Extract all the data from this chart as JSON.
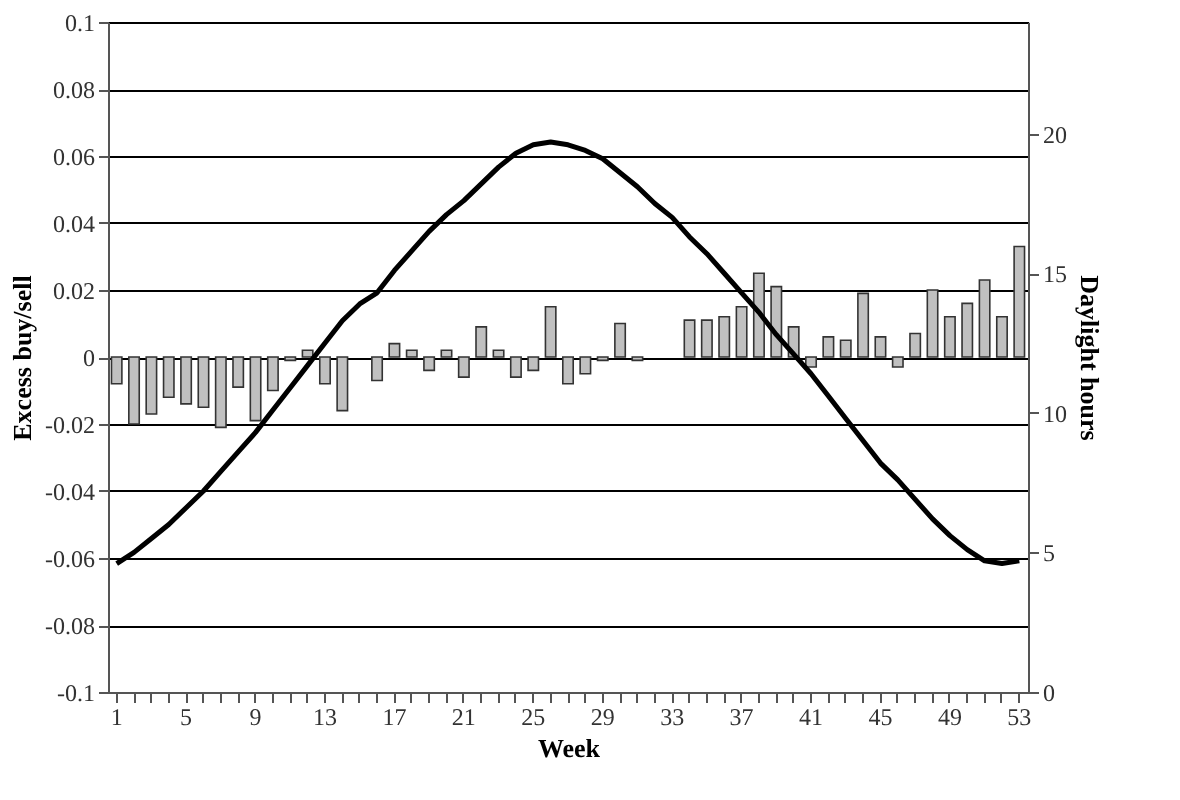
{
  "chart_data": {
    "type": "bar",
    "xlabel": "Week",
    "ylabel": "Excess buy/sell",
    "y2label": "Daylight hours",
    "categories": [
      "1",
      null,
      null,
      null,
      "5",
      null,
      null,
      null,
      "9",
      null,
      null,
      null,
      "13",
      null,
      null,
      null,
      "17",
      null,
      null,
      null,
      "21",
      null,
      null,
      null,
      "25",
      null,
      null,
      null,
      "29",
      null,
      null,
      null,
      "33",
      null,
      null,
      null,
      "37",
      null,
      null,
      null,
      "41",
      null,
      null,
      null,
      "45",
      null,
      null,
      null,
      "49",
      null,
      null,
      null,
      "53"
    ],
    "series": [
      {
        "color": "#c0c0c0",
        "values": [
          -0.008,
          -0.02,
          -0.017,
          -0.012,
          -0.014,
          -0.015,
          -0.021,
          -0.009,
          -0.019,
          -0.01,
          -0.001,
          0.002,
          -0.008,
          -0.016,
          null,
          -0.007,
          0.004,
          0.002,
          -0.004,
          0.002,
          -0.006,
          0.009,
          0.002,
          -0.006,
          -0.004,
          0.015,
          -0.008,
          -0.005,
          -0.001,
          0.01,
          -0.001,
          null,
          null,
          0.011,
          0.011,
          0.012,
          0.015,
          0.025,
          0.021,
          0.009,
          -0.003,
          0.006,
          0.005,
          0.019,
          0.006,
          -0.003,
          0.007,
          0.02,
          0.012,
          0.016,
          0.023,
          0.012,
          0.033
        ]
      },
      {
        "type": "line",
        "axis": "y2",
        "color": "#000000",
        "values": [
          4.6,
          5.0,
          5.5,
          6.0,
          6.6,
          7.2,
          7.9,
          8.6,
          9.3,
          10.1,
          10.9,
          11.7,
          12.5,
          13.3,
          13.9,
          14.3,
          15.1,
          15.8,
          16.5,
          17.1,
          17.6,
          18.2,
          18.8,
          19.3,
          19.6,
          19.7,
          19.6,
          19.4,
          19.1,
          18.6,
          18.1,
          17.5,
          17.0,
          16.3,
          15.7,
          15.0,
          14.3,
          13.6,
          12.8,
          12.1,
          11.4,
          10.6,
          9.8,
          9.0,
          8.2,
          7.6,
          6.9,
          6.2,
          5.6,
          5.1,
          4.7,
          4.6,
          4.7
        ]
      }
    ],
    "ylim": [
      -0.1,
      0.1
    ],
    "yticks": [
      -0.1,
      -0.08,
      -0.06,
      -0.04,
      -0.02,
      0,
      0.02,
      0.04,
      0.06,
      0.08,
      0.1
    ],
    "y2lim": [
      0,
      24
    ],
    "y2ticks": [
      0,
      5,
      10,
      15,
      20
    ],
    "grid": "y",
    "marker": "none",
    "line_style": "solid"
  }
}
